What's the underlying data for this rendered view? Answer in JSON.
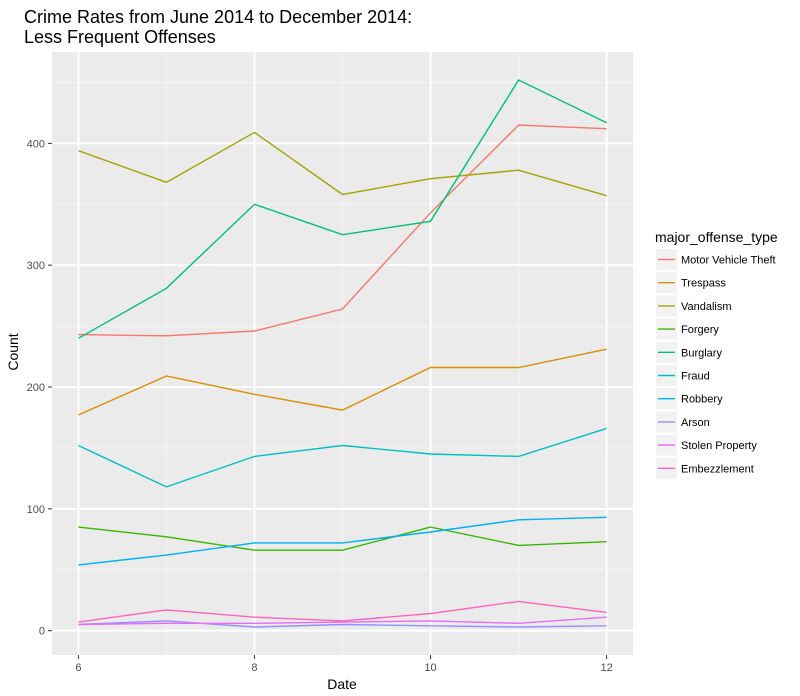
{
  "chart_data": {
    "type": "line",
    "title_lines": [
      "Crime Rates from June 2014 to December 2014:",
      "Less Frequent Offenses"
    ],
    "xlabel": "Date",
    "ylabel": "Count",
    "x": [
      6,
      7,
      8,
      9,
      10,
      11,
      12
    ],
    "x_ticks": [
      6,
      8,
      10,
      12
    ],
    "y_ticks": [
      0,
      100,
      200,
      300,
      400
    ],
    "xlim": [
      5.7,
      12.3
    ],
    "ylim": [
      -20,
      475
    ],
    "grid": true,
    "legend": {
      "title": "major_offense_type",
      "position": "right"
    },
    "series": [
      {
        "name": "Motor Vehicle Theft",
        "color": "#F8766D",
        "values": [
          243,
          242,
          246,
          264,
          343,
          415,
          412
        ]
      },
      {
        "name": "Trespass",
        "color": "#D89000",
        "values": [
          177,
          209,
          194,
          181,
          216,
          216,
          231
        ]
      },
      {
        "name": "Vandalism",
        "color": "#A3A500",
        "values": [
          394,
          368,
          409,
          358,
          371,
          378,
          357
        ]
      },
      {
        "name": "Forgery",
        "color": "#39B600",
        "values": [
          85,
          77,
          66,
          66,
          85,
          70,
          73
        ]
      },
      {
        "name": "Burglary",
        "color": "#00BF7D",
        "values": [
          240,
          281,
          350,
          325,
          336,
          452,
          417
        ]
      },
      {
        "name": "Fraud",
        "color": "#00BFC4",
        "values": [
          152,
          118,
          143,
          152,
          145,
          143,
          166
        ]
      },
      {
        "name": "Robbery",
        "color": "#00B0F6",
        "values": [
          54,
          62,
          72,
          72,
          81,
          91,
          93
        ]
      },
      {
        "name": "Arson",
        "color": "#9590FF",
        "values": [
          5,
          8,
          3,
          5,
          4,
          3,
          4
        ]
      },
      {
        "name": "Stolen Property",
        "color": "#E76BF3",
        "values": [
          5,
          6,
          6,
          7,
          8,
          6,
          11
        ]
      },
      {
        "name": "Embezzlement",
        "color": "#FF62BC",
        "values": [
          7,
          17,
          11,
          8,
          14,
          24,
          15
        ]
      }
    ]
  }
}
